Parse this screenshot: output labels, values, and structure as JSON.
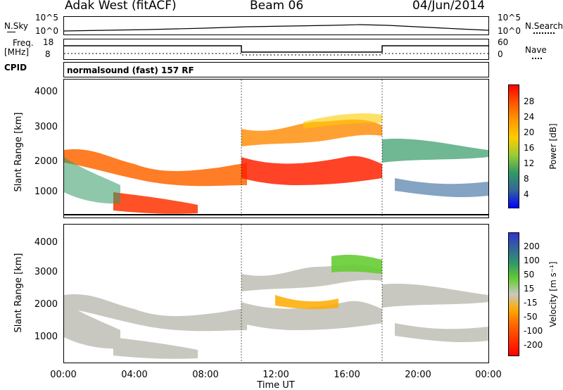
{
  "header": {
    "site": "Adak West (fitACF)",
    "beam": "Beam 06",
    "date": "04/Jun/2014"
  },
  "top_panels": {
    "nsky_label": "N.Sky",
    "nsky_ticks": [
      "10^5",
      "10^0"
    ],
    "nsearch_label": "N.Search",
    "nsearch_ticks": [
      "10^5",
      "10^0"
    ],
    "freq_label": "Freq.",
    "freq_unit": "[MHz]",
    "freq_ticks": [
      "18",
      "8"
    ],
    "nave_label": "Nave",
    "nave_ticks": [
      "60",
      "0"
    ],
    "cpid_label": "CPID",
    "cpid_text": "normalsound (fast) 157 RF"
  },
  "chart_data": [
    {
      "type": "heatmap",
      "ylabel": "Slant Range [km]",
      "xlabel": "Time UT",
      "ylim": [
        200,
        4500
      ],
      "yticks": [
        "1000",
        "2000",
        "3000",
        "4000"
      ],
      "xticks": [
        "00:00",
        "04:00",
        "08:00",
        "12:00",
        "16:00",
        "20:00",
        "00:00"
      ],
      "colorbar": {
        "label": "Power [dB]",
        "ticks": [
          "28",
          "24",
          "20",
          "16",
          "12",
          "8",
          "4"
        ],
        "colors": [
          "#ff0000",
          "#ff5500",
          "#ff9900",
          "#ffcc00",
          "#99cc33",
          "#339966",
          "#336699",
          "#0000ff"
        ]
      }
    },
    {
      "type": "heatmap",
      "ylabel": "Slant Range [km]",
      "xlabel": "Time UT",
      "ylim": [
        200,
        4500
      ],
      "yticks": [
        "1000",
        "2000",
        "3000",
        "4000"
      ],
      "xticks": [
        "00:00",
        "04:00",
        "08:00",
        "12:00",
        "16:00",
        "20:00",
        "00:00"
      ],
      "colorbar": {
        "label": "Velocity [m s⁻¹]",
        "ticks": [
          "200",
          "100",
          "50",
          "15",
          "-15",
          "-50",
          "-100",
          "-200"
        ],
        "colors": [
          "#3333cc",
          "#336699",
          "#339966",
          "#66cc33",
          "#c8c8c0",
          "#ffaa00",
          "#ff6600",
          "#ff3300",
          "#ff0000"
        ]
      }
    }
  ]
}
